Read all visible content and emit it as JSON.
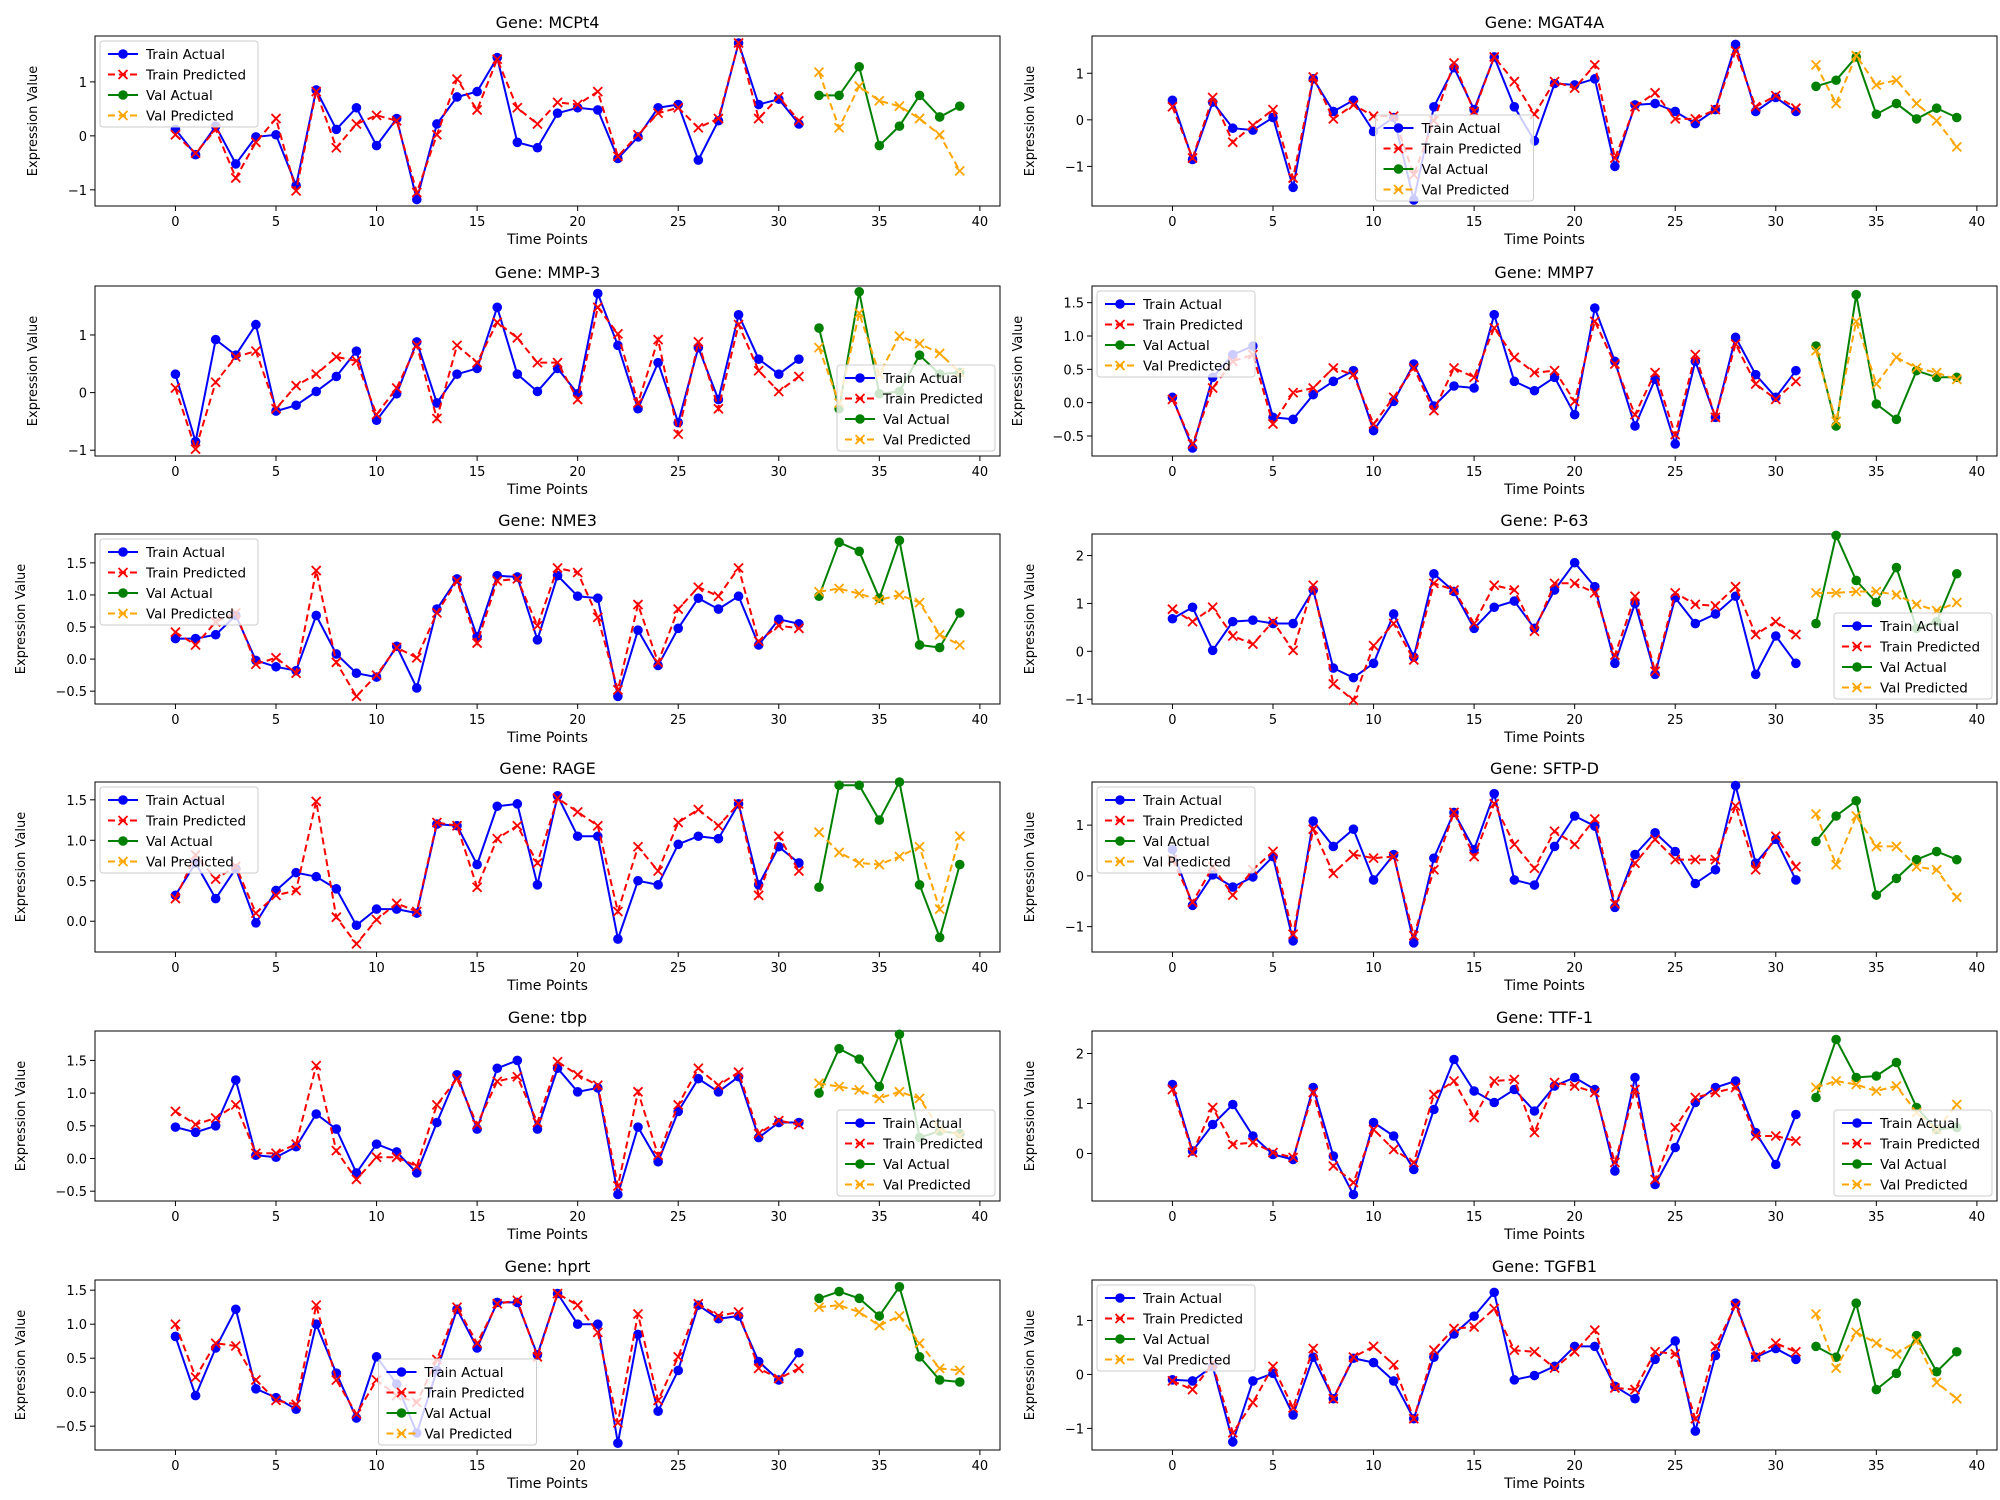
{
  "figure": {
    "xlabel": "Time Points",
    "ylabel": "Expression Value",
    "title_prefix": "Gene: ",
    "legend_labels": [
      "Train Actual",
      "Train Predicted",
      "Val Actual",
      "Val Predicted"
    ],
    "colors": {
      "train_actual": "#0000ff",
      "train_predicted": "#ff0000",
      "val_actual": "#008000",
      "val_predicted": "#ffa500"
    }
  },
  "chart_data": [
    {
      "type": "line",
      "gene": "MCPt4",
      "xlim": [
        -4,
        41
      ],
      "ylim": [
        -1.3,
        1.85
      ],
      "yticks": [
        -1,
        0,
        1
      ],
      "legend": "upper-left",
      "train_actual": [
        0.12,
        -0.35,
        0.18,
        -0.52,
        -0.02,
        0.02,
        -0.92,
        0.85,
        0.12,
        0.52,
        -0.18,
        0.32,
        -1.18,
        0.22,
        0.72,
        0.82,
        1.45,
        -0.12,
        -0.22,
        0.42,
        0.52,
        0.48,
        -0.42,
        -0.02,
        0.52,
        0.58,
        -0.45,
        0.28,
        1.72,
        0.58,
        0.68,
        0.22
      ],
      "train_predicted": [
        0.02,
        -0.32,
        0.12,
        -0.78,
        -0.12,
        0.32,
        -1.02,
        0.82,
        -0.22,
        0.22,
        0.38,
        0.28,
        -1.05,
        0.02,
        1.05,
        0.48,
        1.42,
        0.52,
        0.22,
        0.62,
        0.58,
        0.82,
        -0.38,
        0.02,
        0.42,
        0.52,
        0.15,
        0.32,
        1.72,
        0.32,
        0.72,
        0.28
      ],
      "val_actual": [
        0.75,
        0.75,
        1.28,
        -0.18,
        0.18,
        0.75,
        0.35,
        0.55
      ],
      "val_predicted": [
        1.18,
        0.15,
        0.92,
        0.65,
        0.55,
        0.32,
        0.02,
        -0.65
      ]
    },
    {
      "type": "line",
      "gene": "MGAT4A",
      "xlim": [
        -4,
        41
      ],
      "ylim": [
        -1.85,
        1.8
      ],
      "yticks": [
        -1,
        0,
        1
      ],
      "legend": "lower-center",
      "train_actual": [
        0.42,
        -0.85,
        0.38,
        -0.18,
        -0.22,
        0.05,
        -1.45,
        0.88,
        0.18,
        0.42,
        -0.25,
        0.05,
        -1.72,
        0.28,
        1.12,
        0.22,
        1.35,
        0.28,
        -0.45,
        0.78,
        0.75,
        0.88,
        -1.0,
        0.32,
        0.35,
        0.18,
        -0.08,
        0.22,
        1.62,
        0.18,
        0.48,
        0.18
      ],
      "train_predicted": [
        0.28,
        -0.82,
        0.48,
        -0.48,
        -0.12,
        0.22,
        -1.25,
        0.92,
        0.02,
        0.32,
        0.08,
        0.08,
        -1.18,
        -0.02,
        1.22,
        0.18,
        1.35,
        0.82,
        0.12,
        0.82,
        0.68,
        1.18,
        -0.82,
        0.28,
        0.58,
        0.02,
        0.02,
        0.22,
        1.48,
        0.28,
        0.52,
        0.25
      ],
      "val_actual": [
        0.72,
        0.85,
        1.35,
        0.12,
        0.35,
        0.02,
        0.25,
        0.05
      ],
      "val_predicted": [
        1.18,
        0.35,
        1.38,
        0.75,
        0.85,
        0.35,
        -0.02,
        -0.58
      ]
    },
    {
      "type": "line",
      "gene": "MMP-3",
      "xlim": [
        -4,
        41
      ],
      "ylim": [
        -1.1,
        1.85
      ],
      "yticks": [
        -1,
        0,
        1
      ],
      "legend": "lower-right",
      "train_actual": [
        0.32,
        -0.85,
        0.92,
        0.65,
        1.18,
        -0.32,
        -0.22,
        0.02,
        0.28,
        0.72,
        -0.48,
        -0.02,
        0.88,
        -0.18,
        0.32,
        0.42,
        1.48,
        0.32,
        0.02,
        0.42,
        -0.02,
        1.72,
        0.82,
        -0.28,
        0.52,
        -0.52,
        0.78,
        -0.12,
        1.35,
        0.58,
        0.32,
        0.58
      ],
      "train_predicted": [
        0.08,
        -0.98,
        0.18,
        0.62,
        0.72,
        -0.28,
        0.12,
        0.32,
        0.62,
        0.55,
        -0.38,
        0.08,
        0.82,
        -0.45,
        0.82,
        0.52,
        1.22,
        0.95,
        0.52,
        0.52,
        -0.12,
        1.48,
        1.02,
        -0.18,
        0.92,
        -0.72,
        0.88,
        -0.28,
        1.18,
        0.38,
        0.02,
        0.28
      ],
      "val_actual": [
        1.12,
        -0.28,
        1.75,
        -0.02,
        0.02,
        0.65,
        0.32,
        0.35
      ],
      "val_predicted": [
        0.78,
        -0.18,
        1.38,
        0.32,
        0.98,
        0.85,
        0.68,
        0.35
      ]
    },
    {
      "type": "line",
      "gene": "MMP7",
      "xlim": [
        -4,
        41
      ],
      "ylim": [
        -0.8,
        1.75
      ],
      "yticks": [
        -0.5,
        0.0,
        0.5,
        1.0,
        1.5
      ],
      "legend": "upper-left",
      "train_actual": [
        0.08,
        -0.68,
        0.38,
        0.72,
        0.85,
        -0.22,
        -0.25,
        0.12,
        0.32,
        0.48,
        -0.42,
        0.02,
        0.58,
        -0.05,
        0.25,
        0.22,
        1.32,
        0.32,
        0.18,
        0.38,
        -0.18,
        1.42,
        0.62,
        -0.35,
        0.35,
        -0.62,
        0.62,
        -0.22,
        0.98,
        0.42,
        0.08,
        0.48
      ],
      "train_predicted": [
        0.05,
        -0.62,
        0.22,
        0.62,
        0.72,
        -0.32,
        0.15,
        0.22,
        0.52,
        0.42,
        -0.32,
        0.08,
        0.52,
        -0.12,
        0.52,
        0.38,
        1.12,
        0.68,
        0.45,
        0.48,
        0.02,
        1.22,
        0.58,
        -0.18,
        0.45,
        -0.48,
        0.72,
        -0.22,
        0.88,
        0.28,
        0.05,
        0.32
      ],
      "val_actual": [
        0.85,
        -0.35,
        1.62,
        -0.02,
        -0.25,
        0.48,
        0.38,
        0.38
      ],
      "val_predicted": [
        0.78,
        -0.28,
        1.22,
        0.28,
        0.68,
        0.52,
        0.45,
        0.35
      ]
    },
    {
      "type": "line",
      "gene": "NME3",
      "xlim": [
        -4,
        41
      ],
      "ylim": [
        -0.7,
        1.95
      ],
      "yticks": [
        -0.5,
        0.0,
        0.5,
        1.0,
        1.5
      ],
      "legend": "upper-left",
      "train_actual": [
        0.32,
        0.32,
        0.38,
        0.68,
        -0.02,
        -0.12,
        -0.18,
        0.68,
        0.08,
        -0.22,
        -0.28,
        0.2,
        -0.45,
        0.78,
        1.25,
        0.35,
        1.3,
        1.28,
        0.3,
        1.3,
        0.98,
        0.95,
        -0.58,
        0.45,
        -0.1,
        0.48,
        0.95,
        0.78,
        0.98,
        0.22,
        0.62,
        0.55
      ],
      "train_predicted": [
        0.42,
        0.22,
        0.58,
        0.72,
        -0.08,
        0.02,
        -0.22,
        1.38,
        -0.05,
        -0.58,
        -0.25,
        0.18,
        0.02,
        0.72,
        1.22,
        0.25,
        1.22,
        1.25,
        0.52,
        1.42,
        1.35,
        0.65,
        -0.48,
        0.85,
        -0.05,
        0.78,
        1.12,
        0.98,
        1.42,
        0.28,
        0.52,
        0.48
      ],
      "val_actual": [
        0.98,
        1.82,
        1.68,
        0.95,
        1.85,
        0.22,
        0.18,
        0.72
      ],
      "val_predicted": [
        1.05,
        1.1,
        1.02,
        0.92,
        1.0,
        0.88,
        0.38,
        0.22
      ]
    },
    {
      "type": "line",
      "gene": "P-63",
      "xlim": [
        -4,
        41
      ],
      "ylim": [
        -1.1,
        2.45
      ],
      "yticks": [
        -1,
        0,
        1,
        2
      ],
      "legend": "lower-right",
      "train_actual": [
        0.68,
        0.92,
        0.02,
        0.62,
        0.65,
        0.58,
        0.58,
        1.28,
        -0.35,
        -0.55,
        -0.25,
        0.78,
        -0.12,
        1.62,
        1.25,
        0.48,
        0.92,
        1.05,
        0.48,
        1.28,
        1.85,
        1.35,
        -0.25,
        1.0,
        -0.48,
        1.12,
        0.58,
        0.78,
        1.15,
        -0.48,
        0.32,
        -0.25
      ],
      "train_predicted": [
        0.88,
        0.62,
        0.92,
        0.32,
        0.15,
        0.62,
        0.02,
        1.38,
        -0.68,
        -1.02,
        0.12,
        0.58,
        -0.18,
        1.42,
        1.28,
        0.58,
        1.38,
        1.28,
        0.42,
        1.42,
        1.42,
        1.22,
        -0.08,
        1.15,
        -0.42,
        1.22,
        0.98,
        0.95,
        1.35,
        0.35,
        0.62,
        0.35
      ],
      "val_actual": [
        0.58,
        2.42,
        1.48,
        1.02,
        1.75,
        0.48,
        0.62,
        1.62
      ],
      "val_predicted": [
        1.22,
        1.22,
        1.25,
        1.25,
        1.18,
        0.98,
        0.85,
        1.02
      ]
    },
    {
      "type": "line",
      "gene": "RAGE",
      "xlim": [
        -4,
        41
      ],
      "ylim": [
        -0.38,
        1.72
      ],
      "yticks": [
        0.0,
        0.5,
        1.0,
        1.5
      ],
      "legend": "upper-left",
      "train_actual": [
        0.32,
        0.72,
        0.28,
        0.65,
        -0.02,
        0.38,
        0.6,
        0.55,
        0.4,
        -0.05,
        0.15,
        0.15,
        0.1,
        1.2,
        1.18,
        0.7,
        1.42,
        1.45,
        0.45,
        1.55,
        1.05,
        1.05,
        -0.22,
        0.5,
        0.45,
        0.95,
        1.05,
        1.02,
        1.45,
        0.45,
        0.92,
        0.72
      ],
      "train_predicted": [
        0.28,
        0.82,
        0.52,
        0.68,
        0.1,
        0.32,
        0.38,
        1.48,
        0.05,
        -0.28,
        0.02,
        0.22,
        0.12,
        1.22,
        1.18,
        0.42,
        1.02,
        1.18,
        0.72,
        1.52,
        1.35,
        1.18,
        0.12,
        0.92,
        0.62,
        1.22,
        1.38,
        1.18,
        1.45,
        0.32,
        1.05,
        0.62
      ],
      "val_actual": [
        0.42,
        1.68,
        1.68,
        1.25,
        1.72,
        0.45,
        -0.2,
        0.7
      ],
      "val_predicted": [
        1.1,
        0.85,
        0.72,
        0.7,
        0.8,
        0.92,
        0.15,
        1.05
      ]
    },
    {
      "type": "line",
      "gene": "SFTP-D",
      "xlim": [
        -4,
        41
      ],
      "ylim": [
        -1.5,
        1.85
      ],
      "yticks": [
        -1,
        0,
        1
      ],
      "legend": "upper-left",
      "train_actual": [
        0.52,
        -0.58,
        0.02,
        -0.22,
        -0.02,
        0.38,
        -1.28,
        1.08,
        0.58,
        0.92,
        -0.08,
        0.42,
        -1.32,
        0.35,
        1.25,
        0.52,
        1.62,
        -0.08,
        -0.18,
        0.58,
        1.18,
        0.98,
        -0.62,
        0.42,
        0.85,
        0.48,
        -0.15,
        0.12,
        1.78,
        0.25,
        0.72,
        -0.08
      ],
      "train_predicted": [
        0.32,
        -0.52,
        0.18,
        -0.38,
        0.12,
        0.48,
        -1.15,
        0.92,
        0.05,
        0.42,
        0.35,
        0.38,
        -1.18,
        0.12,
        1.25,
        0.38,
        1.42,
        0.62,
        0.15,
        0.88,
        0.62,
        1.12,
        -0.55,
        0.25,
        0.72,
        0.32,
        0.32,
        0.32,
        1.38,
        0.12,
        0.78,
        0.18
      ],
      "val_actual": [
        0.68,
        1.18,
        1.48,
        -0.38,
        -0.05,
        0.32,
        0.48,
        0.32
      ],
      "val_predicted": [
        1.22,
        0.22,
        1.18,
        0.58,
        0.58,
        0.18,
        0.12,
        -0.42
      ]
    },
    {
      "type": "line",
      "gene": "tbp",
      "xlim": [
        -4,
        41
      ],
      "ylim": [
        -0.65,
        1.95
      ],
      "yticks": [
        -0.5,
        0.0,
        0.5,
        1.0,
        1.5
      ],
      "legend": "lower-right",
      "train_actual": [
        0.48,
        0.4,
        0.5,
        1.2,
        0.05,
        0.02,
        0.18,
        0.68,
        0.45,
        -0.22,
        0.22,
        0.1,
        -0.22,
        0.55,
        1.28,
        0.45,
        1.38,
        1.5,
        0.45,
        1.38,
        1.02,
        1.08,
        -0.55,
        0.48,
        -0.05,
        0.72,
        1.22,
        1.02,
        1.25,
        0.32,
        0.55,
        0.55
      ],
      "train_predicted": [
        0.72,
        0.52,
        0.62,
        0.82,
        0.08,
        0.08,
        0.22,
        1.42,
        0.12,
        -0.32,
        0.02,
        0.02,
        -0.12,
        0.82,
        1.22,
        0.52,
        1.18,
        1.25,
        0.55,
        1.48,
        1.28,
        1.12,
        -0.42,
        1.02,
        0.05,
        0.82,
        1.38,
        1.12,
        1.32,
        0.38,
        0.58,
        0.52
      ],
      "val_actual": [
        1.0,
        1.68,
        1.52,
        1.1,
        1.9,
        0.32,
        0.42,
        0.38
      ],
      "val_predicted": [
        1.15,
        1.1,
        1.05,
        0.92,
        1.02,
        0.92,
        0.45,
        0.35
      ]
    },
    {
      "type": "line",
      "gene": "TTF-1",
      "xlim": [
        -4,
        41
      ],
      "ylim": [
        -0.95,
        2.45
      ],
      "yticks": [
        0,
        1,
        2
      ],
      "legend": "lower-right",
      "train_actual": [
        1.38,
        0.05,
        0.58,
        0.98,
        0.35,
        -0.02,
        -0.12,
        1.32,
        -0.05,
        -0.82,
        0.62,
        0.35,
        -0.32,
        0.88,
        1.88,
        1.25,
        1.02,
        1.28,
        0.85,
        1.35,
        1.52,
        1.28,
        -0.35,
        1.52,
        -0.62,
        0.12,
        1.02,
        1.32,
        1.45,
        0.42,
        -0.22,
        0.78
      ],
      "train_predicted": [
        1.28,
        0.02,
        0.92,
        0.18,
        0.22,
        0.02,
        -0.08,
        1.22,
        -0.25,
        -0.58,
        0.48,
        0.08,
        -0.18,
        1.18,
        1.45,
        0.72,
        1.45,
        1.48,
        0.42,
        1.42,
        1.35,
        1.22,
        -0.18,
        1.28,
        -0.52,
        0.52,
        1.12,
        1.22,
        1.32,
        0.35,
        0.35,
        0.25
      ],
      "val_actual": [
        1.12,
        2.28,
        1.52,
        1.55,
        1.82,
        0.92,
        0.48,
        0.52
      ],
      "val_predicted": [
        1.32,
        1.45,
        1.38,
        1.25,
        1.35,
        0.82,
        0.48,
        0.98
      ]
    },
    {
      "type": "line",
      "gene": "hprt",
      "xlim": [
        -4,
        41
      ],
      "ylim": [
        -0.85,
        1.65
      ],
      "yticks": [
        -0.5,
        0.0,
        0.5,
        1.0,
        1.5
      ],
      "legend": "lower-center",
      "train_actual": [
        0.82,
        -0.05,
        0.65,
        1.22,
        0.05,
        -0.08,
        -0.25,
        1.0,
        0.28,
        -0.38,
        0.52,
        0.12,
        -0.6,
        0.32,
        1.22,
        0.65,
        1.32,
        1.32,
        0.55,
        1.45,
        1.0,
        1.0,
        -0.75,
        0.85,
        -0.28,
        0.32,
        1.28,
        1.08,
        1.12,
        0.45,
        0.18,
        0.58
      ],
      "train_predicted": [
        1.0,
        0.22,
        0.72,
        0.68,
        0.18,
        -0.12,
        -0.18,
        1.28,
        0.18,
        -0.32,
        0.18,
        -0.05,
        -0.15,
        0.48,
        1.25,
        0.72,
        1.3,
        1.35,
        0.52,
        1.45,
        1.28,
        0.88,
        -0.45,
        1.15,
        -0.12,
        0.52,
        1.3,
        1.12,
        1.18,
        0.35,
        0.2,
        0.35
      ],
      "val_actual": [
        1.38,
        1.48,
        1.38,
        1.12,
        1.55,
        0.52,
        0.18,
        0.15
      ],
      "val_predicted": [
        1.25,
        1.28,
        1.18,
        0.98,
        1.12,
        0.72,
        0.35,
        0.32
      ]
    },
    {
      "type": "line",
      "gene": "TGFB1",
      "xlim": [
        -4,
        41
      ],
      "ylim": [
        -1.4,
        1.75
      ],
      "yticks": [
        -1,
        0,
        1
      ],
      "legend": "upper-left",
      "train_actual": [
        -0.1,
        -0.12,
        0.15,
        -1.25,
        -0.12,
        0.02,
        -0.75,
        0.32,
        -0.45,
        0.3,
        0.22,
        -0.12,
        -0.82,
        0.32,
        0.75,
        1.08,
        1.52,
        -0.1,
        -0.02,
        0.15,
        0.52,
        0.52,
        -0.22,
        -0.45,
        0.28,
        0.62,
        -1.05,
        0.35,
        1.32,
        0.32,
        0.48,
        0.28
      ],
      "train_predicted": [
        -0.12,
        -0.28,
        0.2,
        -1.08,
        -0.52,
        0.15,
        -0.62,
        0.48,
        -0.45,
        0.32,
        0.52,
        0.18,
        -0.82,
        0.45,
        0.85,
        0.88,
        1.22,
        0.45,
        0.42,
        0.12,
        0.42,
        0.82,
        -0.25,
        -0.28,
        0.42,
        0.38,
        -0.82,
        0.52,
        1.28,
        0.32,
        0.58,
        0.42
      ],
      "val_actual": [
        0.52,
        0.32,
        1.32,
        -0.28,
        0.02,
        0.72,
        0.05,
        0.42
      ],
      "val_predicted": [
        1.12,
        0.12,
        0.78,
        0.58,
        0.38,
        0.62,
        -0.15,
        -0.45
      ]
    }
  ]
}
